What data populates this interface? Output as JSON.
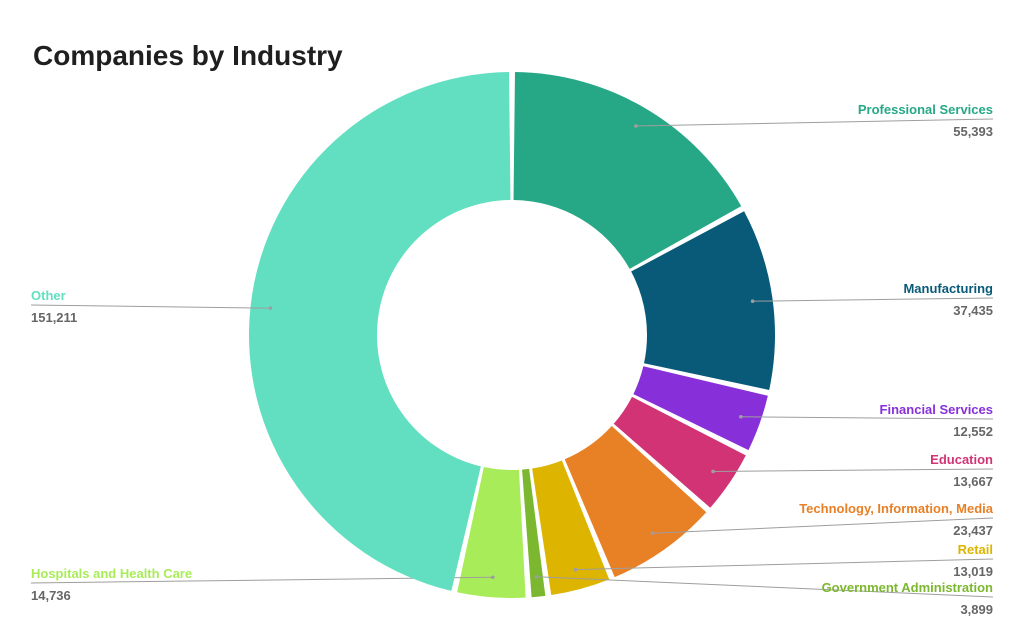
{
  "chart_data": {
    "type": "pie",
    "variant": "donut",
    "title": "Companies by Industry",
    "slices": [
      {
        "label": "Professional Services",
        "value": 55393,
        "display": "55,393",
        "color": "#26a887"
      },
      {
        "label": "Manufacturing",
        "value": 37435,
        "display": "37,435",
        "color": "#085a78"
      },
      {
        "label": "Financial Services",
        "value": 12552,
        "display": "12,552",
        "color": "#8730d9"
      },
      {
        "label": "Education",
        "value": 13667,
        "display": "13,667",
        "color": "#d23375"
      },
      {
        "label": "Technology, Information, Media",
        "value": 23437,
        "display": "23,437",
        "color": "#e88026"
      },
      {
        "label": "Retail",
        "value": 13019,
        "display": "13,019",
        "color": "#ddb400"
      },
      {
        "label": "Government Administration",
        "value": 3899,
        "display": "3,899",
        "color": "#7cb82f"
      },
      {
        "label": "Hospitals and Health Care",
        "value": 14736,
        "display": "14,736",
        "color": "#a9ec5a"
      },
      {
        "label": "Other",
        "value": 151211,
        "display": "151,211",
        "color": "#62dfc0"
      }
    ]
  }
}
